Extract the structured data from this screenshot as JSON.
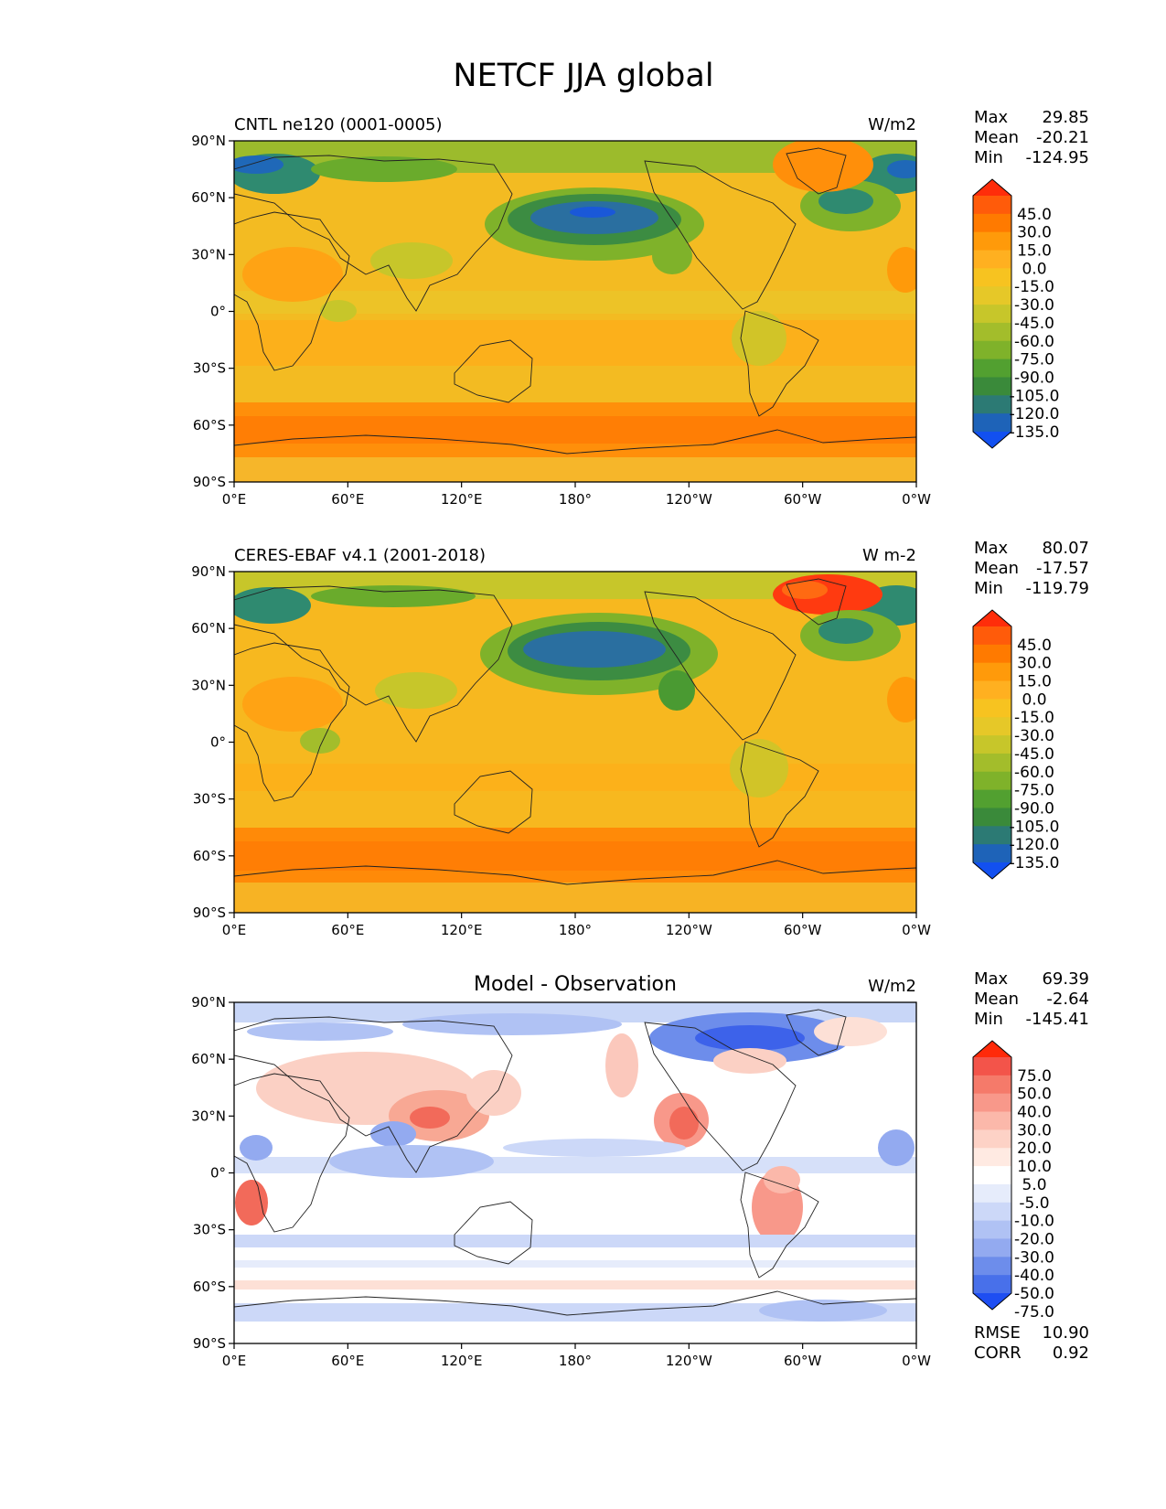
{
  "figure": {
    "title": "NETCF JJA global"
  },
  "chart_data": [
    {
      "type": "heatmap",
      "panel_title_left": "CNTL ne120 (0001-0005)",
      "panel_title_center": "",
      "units": "W/m2",
      "xticks": [
        "0°E",
        "60°E",
        "120°E",
        "180°",
        "120°W",
        "60°W",
        "0°W"
      ],
      "yticks": [
        "90°N",
        "60°N",
        "30°N",
        "0°",
        "30°S",
        "60°S",
        "90°S"
      ],
      "xlim_lon": [
        0,
        360
      ],
      "ylim_lat": [
        -90,
        90
      ],
      "stats": [
        {
          "label": "Max",
          "value": "29.85"
        },
        {
          "label": "Mean",
          "value": "-20.21"
        },
        {
          "label": "Min",
          "value": "-124.95"
        }
      ],
      "colorbar": {
        "labels": [
          "45.0",
          "30.0",
          "15.0",
          "0.0",
          "-15.0",
          "-30.0",
          "-45.0",
          "-60.0",
          "-75.0",
          "-90.0",
          "-105.0",
          "-120.0",
          "-135.0"
        ],
        "colors": [
          "#ff2d0a",
          "#ff5b0a",
          "#ff7a00",
          "#ff9a0a",
          "#ffb020",
          "#f7c320",
          "#e6c828",
          "#c7c62a",
          "#a3bd2b",
          "#7fb22a",
          "#52a030",
          "#3a8a3a",
          "#2c7a74",
          "#1e63b8",
          "#1250f0"
        ]
      }
    },
    {
      "type": "heatmap",
      "panel_title_left": "CERES-EBAF v4.1 (2001-2018)",
      "panel_title_center": "",
      "units": "W m-2",
      "xticks": [
        "0°E",
        "60°E",
        "120°E",
        "180°",
        "120°W",
        "60°W",
        "0°W"
      ],
      "yticks": [
        "90°N",
        "60°N",
        "30°N",
        "0°",
        "30°S",
        "60°S",
        "90°S"
      ],
      "xlim_lon": [
        0,
        360
      ],
      "ylim_lat": [
        -90,
        90
      ],
      "stats": [
        {
          "label": "Max",
          "value": "80.07"
        },
        {
          "label": "Mean",
          "value": "-17.57"
        },
        {
          "label": "Min",
          "value": "-119.79"
        }
      ],
      "colorbar": {
        "labels": [
          "45.0",
          "30.0",
          "15.0",
          "0.0",
          "-15.0",
          "-30.0",
          "-45.0",
          "-60.0",
          "-75.0",
          "-90.0",
          "-105.0",
          "-120.0",
          "-135.0"
        ],
        "colors": [
          "#ff2d0a",
          "#ff5b0a",
          "#ff7a00",
          "#ff9a0a",
          "#ffb020",
          "#f7c320",
          "#e6c828",
          "#c7c62a",
          "#a3bd2b",
          "#7fb22a",
          "#52a030",
          "#3a8a3a",
          "#2c7a74",
          "#1e63b8",
          "#1250f0"
        ]
      }
    },
    {
      "type": "heatmap",
      "panel_title_left": "",
      "panel_title_center": "Model - Observation",
      "units": "W/m2",
      "xticks": [
        "0°E",
        "60°E",
        "120°E",
        "180°",
        "120°W",
        "60°W",
        "0°W"
      ],
      "yticks": [
        "90°N",
        "60°N",
        "30°N",
        "0°",
        "30°S",
        "60°S",
        "90°S"
      ],
      "xlim_lon": [
        0,
        360
      ],
      "ylim_lat": [
        -90,
        90
      ],
      "stats": [
        {
          "label": "Max",
          "value": "69.39"
        },
        {
          "label": "Mean",
          "value": "-2.64"
        },
        {
          "label": "Min",
          "value": "-145.41"
        }
      ],
      "metrics": [
        {
          "label": "RMSE",
          "value": "10.90"
        },
        {
          "label": "CORR",
          "value": "0.92"
        }
      ],
      "colorbar": {
        "labels": [
          "75.0",
          "50.0",
          "40.0",
          "30.0",
          "20.0",
          "10.0",
          "5.0",
          "-5.0",
          "-10.0",
          "-20.0",
          "-30.0",
          "-40.0",
          "-50.0",
          "-75.0"
        ],
        "colors": [
          "#ff2a0a",
          "#f3544a",
          "#f57a6a",
          "#f8988a",
          "#fbb8aa",
          "#fdd2c6",
          "#ffeae2",
          "#ffffff",
          "#e6ecfb",
          "#ccd8f8",
          "#b0c2f4",
          "#93aaf0",
          "#6d8deb",
          "#4870ea",
          "#1e4ef2"
        ]
      }
    }
  ]
}
